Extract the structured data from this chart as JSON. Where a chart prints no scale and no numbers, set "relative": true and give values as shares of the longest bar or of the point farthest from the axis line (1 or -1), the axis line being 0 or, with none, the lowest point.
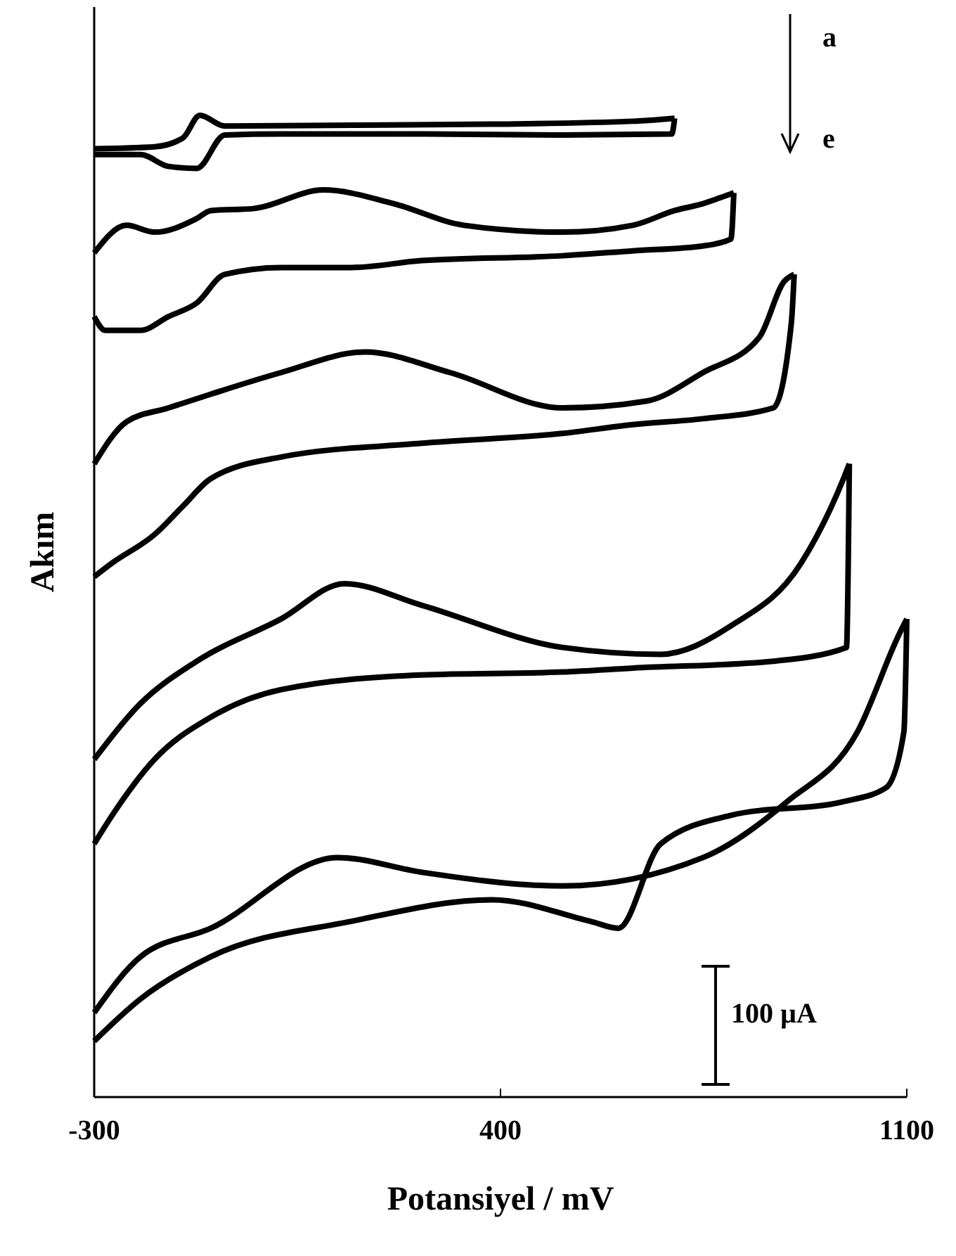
{
  "chart_data": {
    "type": "line",
    "relative": true,
    "xlabel": "Potansiyel / mV",
    "ylabel": "Akım",
    "xlim": [
      -300,
      1100
    ],
    "xticks": [
      -300,
      400,
      1100
    ],
    "grid": false,
    "marker": "none",
    "line_style": "solid",
    "annotations": [
      "a",
      "e",
      "100 µA"
    ],
    "series": [
      {
        "color": "#000000",
        "x": [
          -300,
          -196,
          -147,
          -118,
          -75,
          143,
          385,
          628,
          700
        ],
        "values": [
          0.966,
          0.968,
          0.977,
          1,
          0.989,
          0.99,
          0.991,
          0.994,
          0.997
        ]
      },
      {
        "color": "#000000",
        "x": [
          -300,
          -220,
          -172,
          -123,
          -75,
          22,
          264,
          507,
          695,
          700
        ],
        "values": [
          0.96,
          0.96,
          0.948,
          0.946,
          0.98,
          0.981,
          0.981,
          0.98,
          0.981,
          0.997
        ]
      },
      {
        "color": "#000000",
        "x": [
          -300,
          -244,
          -196,
          -123,
          -99,
          -26,
          95,
          216,
          337,
          507,
          628,
          700,
          749,
          797,
          802
        ],
        "values": [
          0.86,
          0.888,
          0.881,
          0.895,
          0.903,
          0.905,
          0.924,
          0.91,
          0.888,
          0.881,
          0.888,
          0.903,
          0.91,
          0.92,
          0.921
        ]
      },
      {
        "color": "#000000",
        "x": [
          -300,
          -281,
          -220,
          -172,
          -123,
          -75,
          22,
          143,
          264,
          507,
          628,
          749,
          797,
          802
        ],
        "values": [
          0.795,
          0.781,
          0.781,
          0.795,
          0.809,
          0.838,
          0.845,
          0.845,
          0.852,
          0.857,
          0.862,
          0.867,
          0.874,
          0.921
        ]
      },
      {
        "color": "#000000",
        "x": [
          -300,
          -244,
          -172,
          -99,
          22,
          167,
          313,
          507,
          652,
          749,
          846,
          889,
          906
        ],
        "values": [
          0.645,
          0.688,
          0.702,
          0.716,
          0.738,
          0.759,
          0.738,
          0.702,
          0.709,
          0.738,
          0.774,
          0.831,
          0.838
        ]
      },
      {
        "color": "#000000",
        "x": [
          -300,
          -269,
          -196,
          -147,
          -99,
          22,
          264,
          507,
          628,
          749,
          870,
          901,
          906
        ],
        "values": [
          0.53,
          0.544,
          0.573,
          0.602,
          0.63,
          0.652,
          0.666,
          0.676,
          0.685,
          0.691,
          0.702,
          0.788,
          0.838
        ]
      },
      {
        "color": "#000000",
        "x": [
          -300,
          -220,
          -123,
          22,
          131,
          264,
          507,
          676,
          797,
          918,
          991,
          1001
        ],
        "values": [
          0.344,
          0.401,
          0.444,
          0.487,
          0.523,
          0.501,
          0.458,
          0.451,
          0.48,
          0.544,
          0.63,
          0.645
        ]
      },
      {
        "color": "#000000",
        "x": [
          -300,
          -269,
          -196,
          -99,
          22,
          264,
          507,
          628,
          870,
          996,
          1001
        ],
        "values": [
          0.258,
          0.287,
          0.344,
          0.387,
          0.415,
          0.43,
          0.433,
          0.437,
          0.444,
          0.458,
          0.645
        ]
      },
      {
        "color": "#000000",
        "x": [
          -300,
          -220,
          -99,
          119,
          264,
          507,
          749,
          894,
          1015,
          1088,
          1100
        ],
        "values": [
          0.086,
          0.143,
          0.172,
          0.244,
          0.229,
          0.215,
          0.244,
          0.301,
          0.372,
          0.473,
          0.487
        ]
      },
      {
        "color": "#000000",
        "x": [
          -300,
          -220,
          -99,
          143,
          385,
          555,
          603,
          676,
          797,
          991,
          1064,
          1095,
          1100
        ],
        "values": [
          0.057,
          0.1,
          0.143,
          0.179,
          0.201,
          0.179,
          0.172,
          0.258,
          0.287,
          0.301,
          0.315,
          0.372,
          0.487
        ]
      }
    ]
  }
}
